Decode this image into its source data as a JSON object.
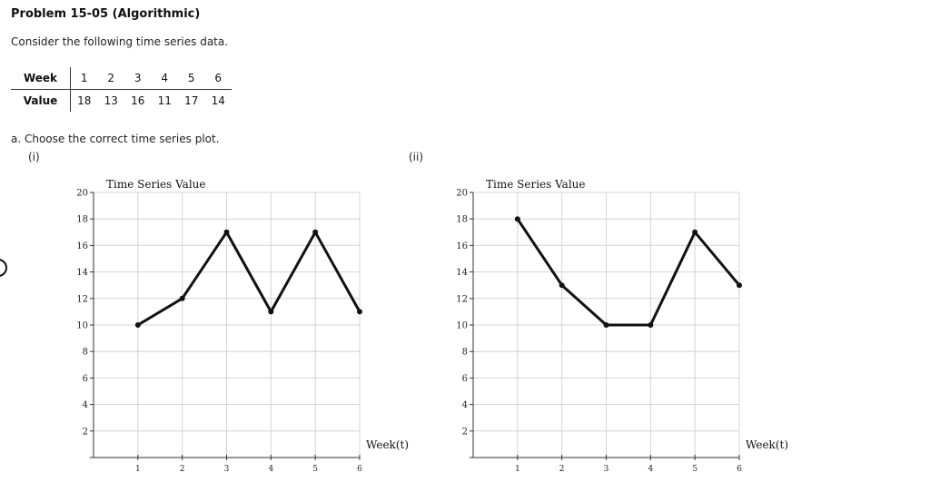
{
  "problem": {
    "title": "Problem 15-05 (Algorithmic)",
    "intro": "Consider the following time series data.",
    "question": "a. Choose the correct time series plot."
  },
  "table": {
    "week_label": "Week",
    "value_label": "Value",
    "weeks": [
      "1",
      "2",
      "3",
      "4",
      "5",
      "6"
    ],
    "values": [
      "18",
      "13",
      "16",
      "11",
      "17",
      "14"
    ]
  },
  "options": [
    {
      "label": "(i)"
    },
    {
      "label": "(ii)"
    }
  ],
  "chart_data": [
    {
      "type": "line",
      "title": "Time Series Value",
      "xlabel": "Week(t)",
      "ylabel": "",
      "xlim": [
        0,
        6
      ],
      "ylim": [
        0,
        20
      ],
      "x_ticks": [
        "1",
        "2",
        "3",
        "4",
        "5",
        "6"
      ],
      "y_ticks": [
        "2",
        "4",
        "6",
        "8",
        "10",
        "12",
        "14",
        "16",
        "18",
        "20"
      ],
      "grid": true,
      "x": [
        1,
        2,
        3,
        4,
        5,
        6
      ],
      "series": [
        {
          "values": [
            10,
            12,
            17,
            11,
            17,
            11
          ]
        }
      ]
    },
    {
      "type": "line",
      "title": "Time Series Value",
      "xlabel": "Week(t)",
      "ylabel": "",
      "xlim": [
        0,
        6
      ],
      "ylim": [
        0,
        20
      ],
      "x_ticks": [
        "1",
        "2",
        "3",
        "4",
        "5",
        "6"
      ],
      "y_ticks": [
        "2",
        "4",
        "6",
        "8",
        "10",
        "12",
        "14",
        "16",
        "18",
        "20"
      ],
      "grid": true,
      "x": [
        1,
        2,
        3,
        4,
        5,
        6
      ],
      "series": [
        {
          "values": [
            18,
            13,
            10,
            10,
            17,
            13
          ]
        }
      ]
    }
  ]
}
